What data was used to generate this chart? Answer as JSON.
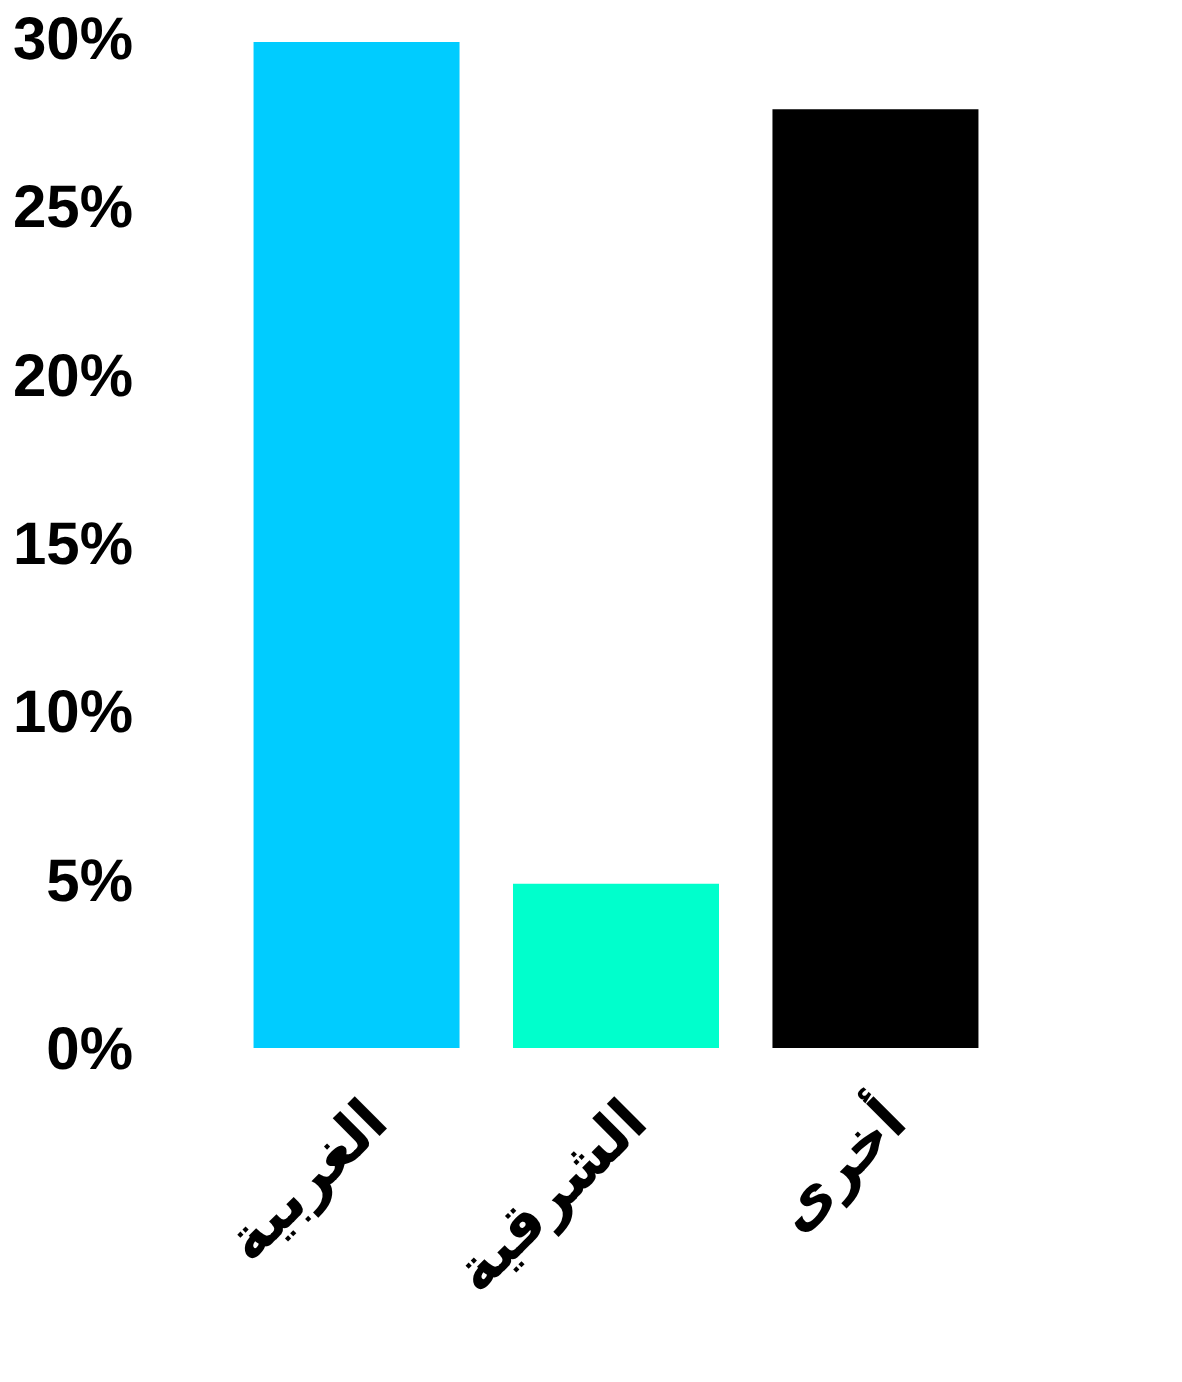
{
  "chart_data": {
    "type": "bar",
    "categories": [
      "الغربية",
      "الشرقية",
      "أخرى"
    ],
    "values": [
      30,
      5,
      28
    ],
    "colors": [
      "#00ccff",
      "#00ffcc",
      "#000000"
    ],
    "ylim": [
      0,
      30
    ],
    "yticks": [
      {
        "value": 0,
        "label": "0%"
      },
      {
        "value": 5,
        "label": "5%"
      },
      {
        "value": 10,
        "label": "10%"
      },
      {
        "value": 15,
        "label": "15%"
      },
      {
        "value": 20,
        "label": "20%"
      },
      {
        "value": 25,
        "label": "25%"
      },
      {
        "value": 30,
        "label": "30%"
      }
    ],
    "grid": false,
    "legend": false
  }
}
